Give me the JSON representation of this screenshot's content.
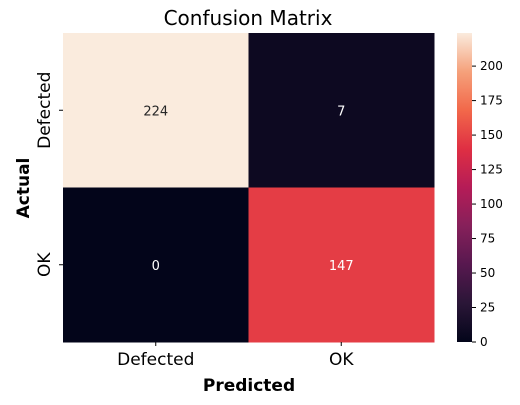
{
  "chart_data": {
    "type": "heatmap",
    "title": "Confusion Matrix",
    "xlabel": "Predicted",
    "ylabel": "Actual",
    "x_categories": [
      "Defected",
      "OK"
    ],
    "y_categories": [
      "Defected",
      "OK"
    ],
    "values": [
      [
        224,
        7
      ],
      [
        0,
        147
      ]
    ],
    "value_labels": [
      [
        "224",
        "7"
      ],
      [
        "0",
        "147"
      ]
    ],
    "colormap": "rocket",
    "colorbar": {
      "vmin": 0,
      "vmax": 224,
      "ticks": [
        0,
        25,
        50,
        75,
        100,
        125,
        150,
        175,
        200
      ],
      "tick_labels": [
        "0",
        "25",
        "50",
        "75",
        "100",
        "125",
        "150",
        "175",
        "200"
      ]
    }
  }
}
